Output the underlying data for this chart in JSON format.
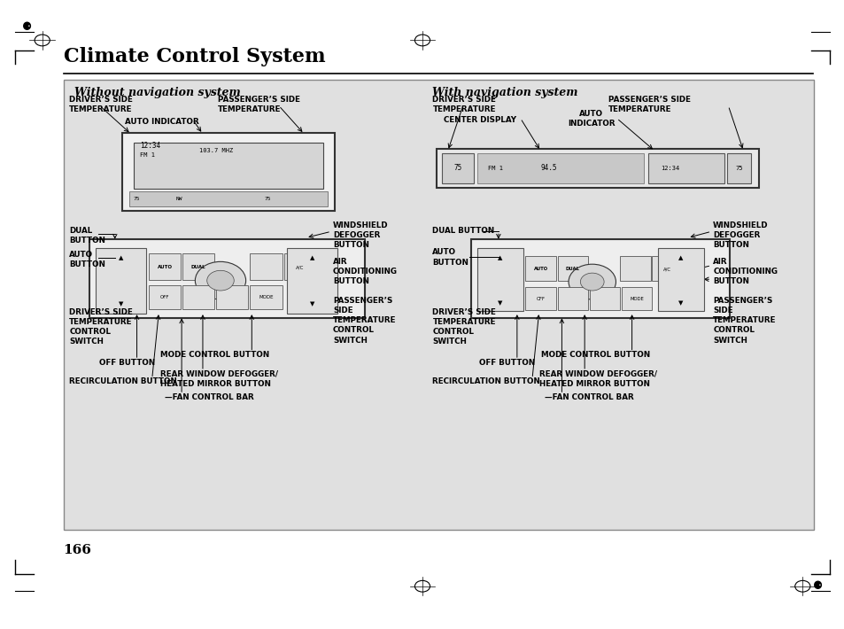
{
  "title": "Climate Control System",
  "page_number": "166",
  "bg_color": "#ffffff",
  "panel_bg": "#e0e0e0",
  "panel_border": "#888888",
  "left_panel_title": "Without navigation system",
  "right_panel_title": "With navigation system"
}
